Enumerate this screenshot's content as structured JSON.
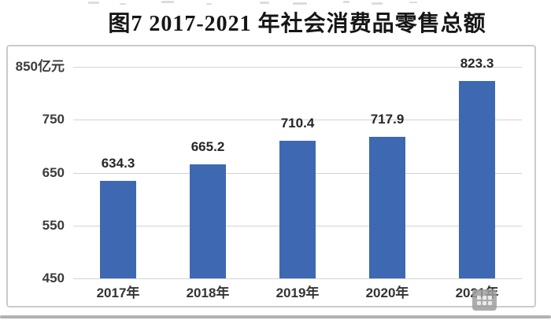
{
  "chart_data": {
    "type": "bar",
    "title": "图7 2017-2021 年社会消费品零售总额",
    "categories": [
      "2017年",
      "2018年",
      "2019年",
      "2020年",
      "2021年"
    ],
    "values": [
      634.3,
      665.2,
      710.4,
      717.9,
      823.3
    ],
    "data_labels": [
      "634.3",
      "665.2",
      "710.4",
      "717.9",
      "823.3"
    ],
    "unit": "亿元",
    "xlabel": "",
    "ylabel": "",
    "ylim": [
      450,
      850
    ],
    "y_tick_interval": 100,
    "y_ticks": [
      {
        "value": 850,
        "label": "850亿元"
      },
      {
        "value": 750,
        "label": "750"
      },
      {
        "value": 650,
        "label": "650"
      },
      {
        "value": 550,
        "label": "550"
      },
      {
        "value": 450,
        "label": "450"
      }
    ],
    "grid": true,
    "legend_position": "none",
    "bar_color": "#3e68b1"
  },
  "colors": {
    "bar": "#3e68b1",
    "gridline": "#d3d3d3",
    "panel_border": "#cbcbcb",
    "label_text": "#262626",
    "bottom_band": "#b1b1b1"
  }
}
